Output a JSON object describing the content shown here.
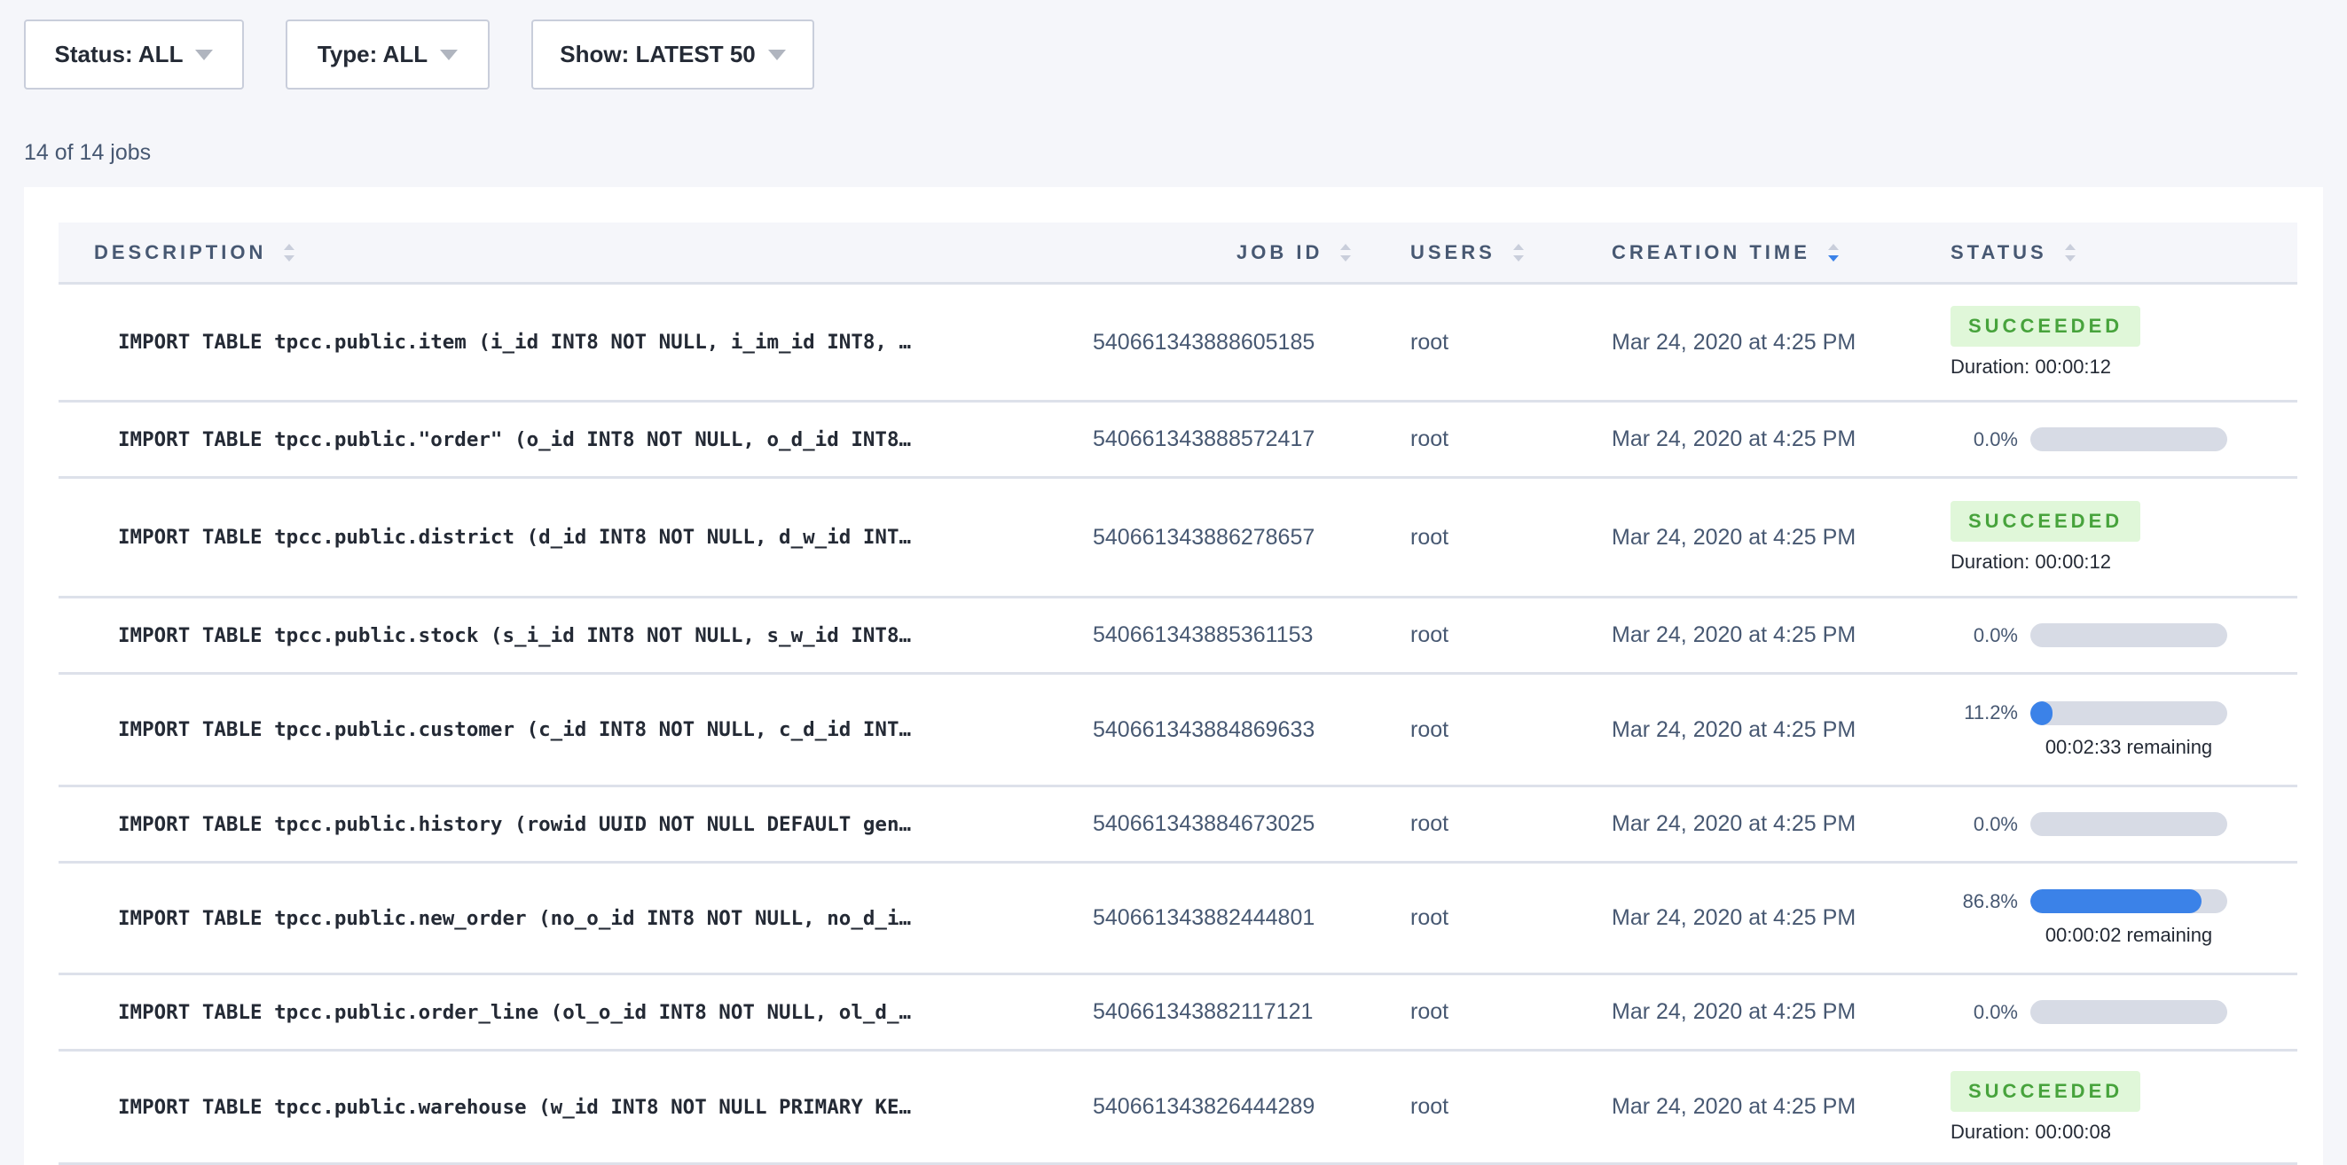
{
  "filters": [
    {
      "label": "Status: ALL"
    },
    {
      "label": "Type: ALL"
    },
    {
      "label": "Show: LATEST 50"
    }
  ],
  "count": "14 of 14 jobs",
  "columns": [
    "DESCRIPTION",
    "JOB ID",
    "USERS",
    "CREATION TIME",
    "STATUS"
  ],
  "sorted_column": "CREATION TIME",
  "sort_direction": "descending",
  "colors": {
    "accent": "#3b82e8",
    "success_bg": "#e0f7d9",
    "success_text": "#47a33c"
  },
  "jobs": [
    {
      "description": "IMPORT TABLE tpcc.public.item (i_id INT8 NOT NULL, i_im_id INT8, …",
      "job_id": "540661343888605185",
      "user": "root",
      "created": "Mar 24, 2020 at 4:25 PM",
      "status": "SUCCEEDED",
      "duration": "Duration: 00:00:12"
    },
    {
      "description": "IMPORT TABLE tpcc.public.\"order\" (o_id INT8 NOT NULL, o_d_id INT8…",
      "job_id": "540661343888572417",
      "user": "root",
      "created": "Mar 24, 2020 at 4:25 PM",
      "progress": 0.0,
      "progress_label": "0.0%"
    },
    {
      "description": "IMPORT TABLE tpcc.public.district (d_id INT8 NOT NULL, d_w_id INT…",
      "job_id": "540661343886278657",
      "user": "root",
      "created": "Mar 24, 2020 at 4:25 PM",
      "status": "SUCCEEDED",
      "duration": "Duration: 00:00:12"
    },
    {
      "description": "IMPORT TABLE tpcc.public.stock (s_i_id INT8 NOT NULL, s_w_id INT8…",
      "job_id": "540661343885361153",
      "user": "root",
      "created": "Mar 24, 2020 at 4:25 PM",
      "progress": 0.0,
      "progress_label": "0.0%"
    },
    {
      "description": "IMPORT TABLE tpcc.public.customer (c_id INT8 NOT NULL, c_d_id INT…",
      "job_id": "540661343884869633",
      "user": "root",
      "created": "Mar 24, 2020 at 4:25 PM",
      "progress": 11.2,
      "progress_label": "11.2%",
      "remaining": "00:02:33 remaining"
    },
    {
      "description": "IMPORT TABLE tpcc.public.history (rowid UUID NOT NULL DEFAULT gen…",
      "job_id": "540661343884673025",
      "user": "root",
      "created": "Mar 24, 2020 at 4:25 PM",
      "progress": 0.0,
      "progress_label": "0.0%"
    },
    {
      "description": "IMPORT TABLE tpcc.public.new_order (no_o_id INT8 NOT NULL, no_d_i…",
      "job_id": "540661343882444801",
      "user": "root",
      "created": "Mar 24, 2020 at 4:25 PM",
      "progress": 86.8,
      "progress_label": "86.8%",
      "remaining": "00:00:02 remaining"
    },
    {
      "description": "IMPORT TABLE tpcc.public.order_line (ol_o_id INT8 NOT NULL, ol_d_…",
      "job_id": "540661343882117121",
      "user": "root",
      "created": "Mar 24, 2020 at 4:25 PM",
      "progress": 0.0,
      "progress_label": "0.0%"
    },
    {
      "description": "IMPORT TABLE tpcc.public.warehouse (w_id INT8 NOT NULL PRIMARY KE…",
      "job_id": "540661343826444289",
      "user": "root",
      "created": "Mar 24, 2020 at 4:25 PM",
      "status": "SUCCEEDED",
      "duration": "Duration: 00:00:08"
    }
  ]
}
